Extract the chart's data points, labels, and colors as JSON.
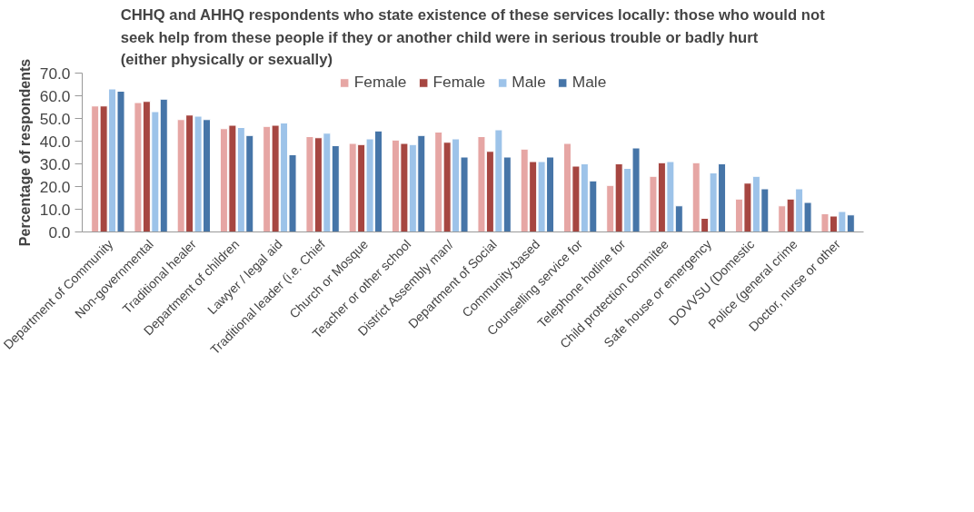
{
  "chart_data": {
    "type": "bar",
    "title": "CHHQ and AHHQ respondents who state existence of these services locally: those who would not seek help from these people if they or another child were in serious trouble or badly hurt (either physically or sexually)",
    "ylabel": "Percentage of respondents",
    "categories": [
      "Department of Community",
      "Non-governmental",
      "Traditional healer",
      "Department of children",
      "Lawyer / legal aid",
      "Traditional leader (i.e. Chief",
      "Church or Mosque",
      "Teacher or other school",
      "District Assembly man/",
      "Department of Social",
      "Community-based",
      "Counselling service for",
      "Telephone hotline for",
      "Child protection commitee",
      "Safe house or emergency",
      "DOVVSU (Domestic",
      "Police (general crime",
      "Doctor, nurse or other"
    ],
    "series": [
      {
        "name": "Female",
        "color": "#e6a6a4",
        "values": [
          55.5,
          57,
          49.5,
          45.5,
          46.5,
          42,
          39,
          40.5,
          44,
          42,
          36.5,
          39,
          20.5,
          24.5,
          30.5,
          14.5,
          11.5,
          8
        ]
      },
      {
        "name": "Female",
        "color": "#a64641",
        "values": [
          55.5,
          57.5,
          51.5,
          47,
          47,
          41.5,
          38.5,
          39,
          39.5,
          35.5,
          31,
          29,
          30,
          30.5,
          6,
          21.5,
          14.5,
          7
        ]
      },
      {
        "name": "Male",
        "color": "#9dc3e9",
        "values": [
          63,
          53,
          51,
          46,
          48,
          43.5,
          41,
          38.5,
          41,
          45,
          31,
          30,
          28,
          31,
          26,
          24.5,
          19,
          9
        ]
      },
      {
        "name": "Male",
        "color": "#4675a8",
        "values": [
          62,
          58.5,
          49.5,
          42.5,
          34,
          38,
          44.5,
          42.5,
          33,
          33,
          33,
          22.5,
          37,
          11.5,
          30,
          19,
          13,
          7.5
        ]
      }
    ],
    "ylim": [
      0,
      70
    ],
    "yticks": [
      {
        "value": 0,
        "label": "0.0"
      },
      {
        "value": 10,
        "label": "10.0"
      },
      {
        "value": 20,
        "label": "20.0"
      },
      {
        "value": 30,
        "label": "30.0"
      },
      {
        "value": 40,
        "label": "40.0"
      },
      {
        "value": 50,
        "label": "50.0"
      },
      {
        "value": 60,
        "label": "60.0"
      },
      {
        "value": 70,
        "label": "70.0"
      }
    ],
    "grid": false,
    "legend": "top"
  }
}
